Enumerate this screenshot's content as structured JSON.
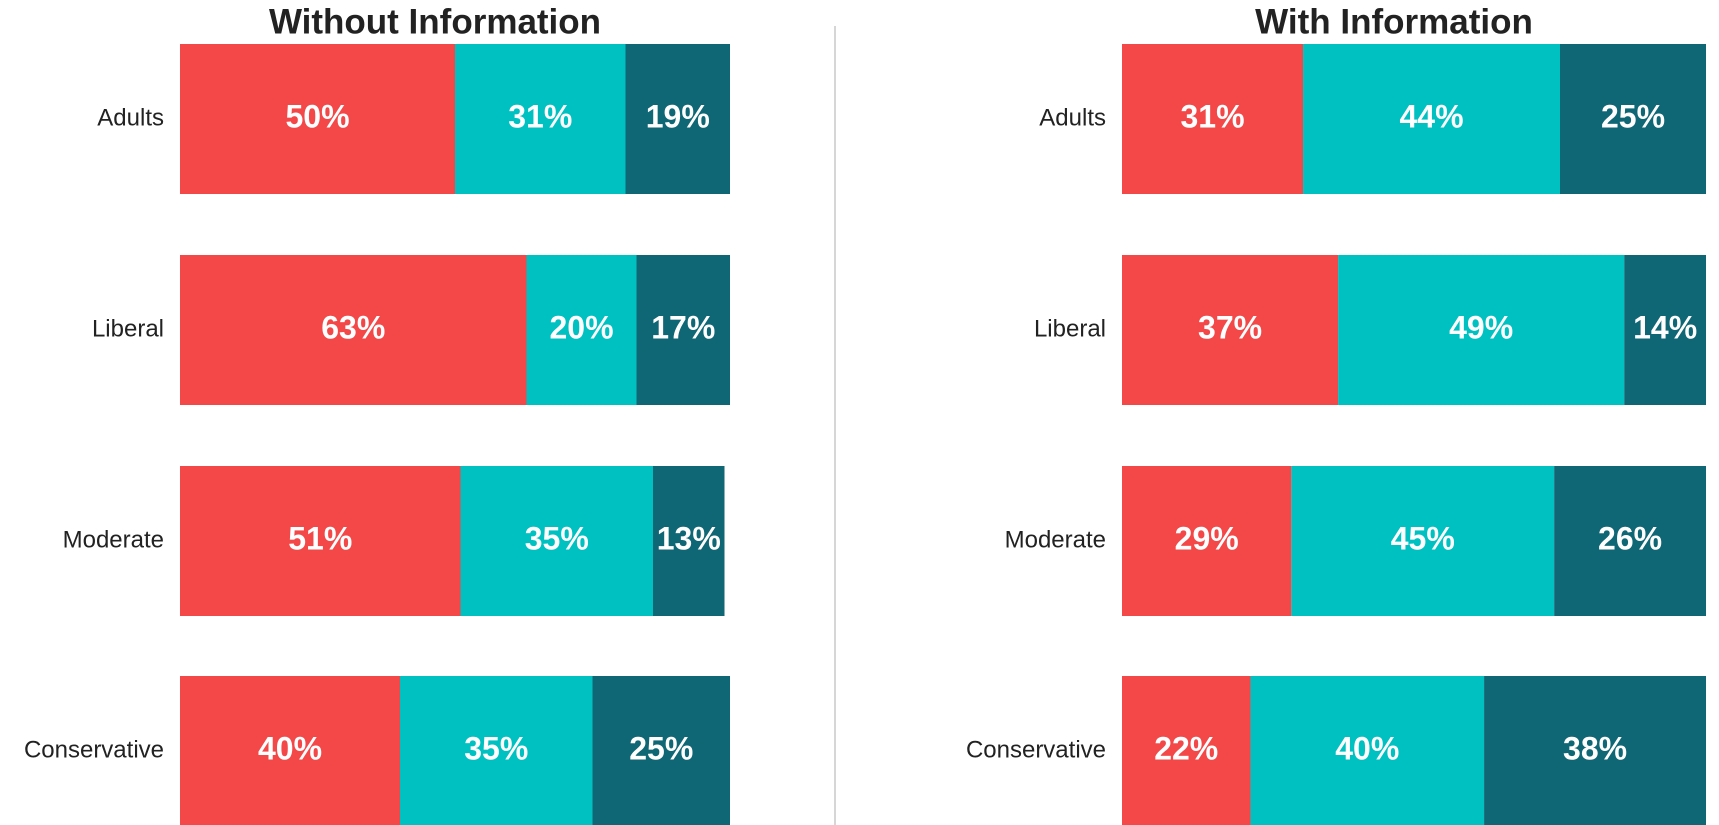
{
  "chart_data": [
    {
      "type": "bar",
      "orientation": "horizontal",
      "stacked": true,
      "title": "Without Information",
      "categories": [
        "Adults",
        "Liberal",
        "Moderate",
        "Conservative"
      ],
      "xlim": [
        0,
        100
      ],
      "series": [
        {
          "color": "#f44848",
          "values": [
            50,
            63,
            51,
            40
          ],
          "value_labels": [
            "50%",
            "63%",
            "51%",
            "40%"
          ]
        },
        {
          "color": "#00c1c1",
          "values": [
            31,
            20,
            35,
            35
          ],
          "value_labels": [
            "31%",
            "20%",
            "35%",
            "35%"
          ]
        },
        {
          "color": "#0f6674",
          "values": [
            19,
            17,
            13,
            25
          ],
          "value_labels": [
            "19%",
            "17%",
            "13%",
            "25%"
          ]
        }
      ]
    },
    {
      "type": "bar",
      "orientation": "horizontal",
      "stacked": true,
      "title": "With Information",
      "categories": [
        "Adults",
        "Liberal",
        "Moderate",
        "Conservative"
      ],
      "xlim": [
        0,
        100
      ],
      "series": [
        {
          "color": "#f44848",
          "values": [
            31,
            37,
            29,
            22
          ],
          "value_labels": [
            "31%",
            "37%",
            "29%",
            "22%"
          ]
        },
        {
          "color": "#00c1c1",
          "values": [
            44,
            49,
            45,
            40
          ],
          "value_labels": [
            "44%",
            "49%",
            "45%",
            "40%"
          ]
        },
        {
          "color": "#0f6674",
          "values": [
            25,
            14,
            26,
            38
          ],
          "value_labels": [
            "25%",
            "14%",
            "26%",
            "38%"
          ]
        }
      ]
    }
  ]
}
